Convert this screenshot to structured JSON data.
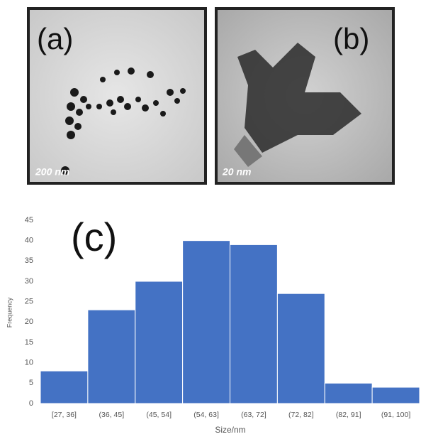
{
  "panels": [
    {
      "label": "(a)",
      "scale_bar": "200 nm"
    },
    {
      "label": "(b)",
      "scale_bar": "20 nm"
    }
  ],
  "chart_data": {
    "type": "bar",
    "label": "(c)",
    "x_label": "Size/nm",
    "y_label": "Frequency",
    "categories": [
      "[27, 36]",
      "(36, 45]",
      "(45, 54]",
      "(54, 63]",
      "(63, 72]",
      "(72, 82]",
      "(82, 91]",
      "(91, 100]"
    ],
    "values": [
      8,
      23,
      30,
      40,
      39,
      27,
      5,
      4
    ],
    "color": "#4472c4",
    "ylim": [
      0,
      45
    ],
    "yticks": [
      0,
      5,
      10,
      15,
      20,
      25,
      30,
      35,
      40,
      45
    ],
    "grid": false
  }
}
